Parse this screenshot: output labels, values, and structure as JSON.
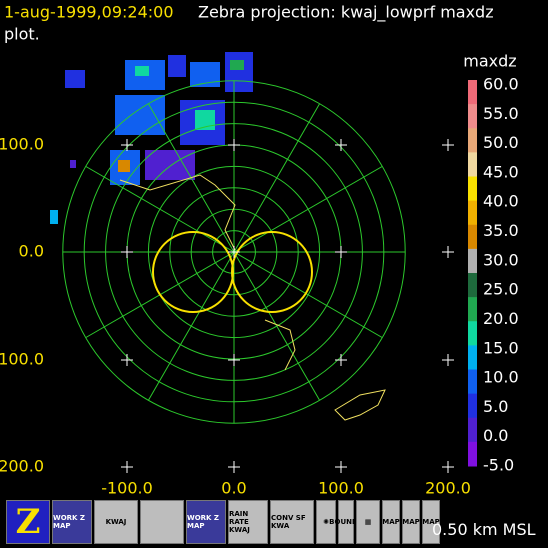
{
  "header": {
    "time": "1-aug-1999,09:24:00",
    "title": "Zebra projection: kwaj_lowprf maxdz",
    "title_cont": "plot."
  },
  "y_labels": [
    "100.0",
    "0.0",
    "100.0",
    "200.0"
  ],
  "x_labels": [
    "-100.0",
    "0.0",
    "100.0",
    "200.0"
  ],
  "colorbar": {
    "name": "maxdz",
    "labels": [
      "60.0",
      "55.0",
      "50.0",
      "45.0",
      "40.0",
      "35.0",
      "30.0",
      "25.0",
      "20.0",
      "15.0",
      "10.0",
      "5.0",
      "0.0",
      "-5.0"
    ],
    "colors": [
      "#f06a78",
      "#f08c8c",
      "#e8a878",
      "#f0d8a0",
      "#f8e000",
      "#f0b000",
      "#d88800",
      "#b0b0b0",
      "#1e6a3c",
      "#20a850",
      "#10d8a0",
      "#00b0f0",
      "#1060f0",
      "#2030e0",
      "#5020d0",
      "#8010e0"
    ]
  },
  "toolbar": [
    {
      "label": "Z"
    },
    {
      "label": "WORK Z MAP"
    },
    {
      "label": "KWAJ"
    },
    {
      "label": ""
    },
    {
      "label": "WORK Z MAP"
    },
    {
      "label": "RAIN RATE KWAJ"
    },
    {
      "label": "CONV SF KWA"
    },
    {
      "label": "✺"
    },
    {
      "label": "BOUNDS"
    },
    {
      "label": "▦"
    },
    {
      "label": "MAP"
    },
    {
      "label": "MAP"
    },
    {
      "label": "MAP"
    }
  ],
  "status": "0.50 km MSL"
}
